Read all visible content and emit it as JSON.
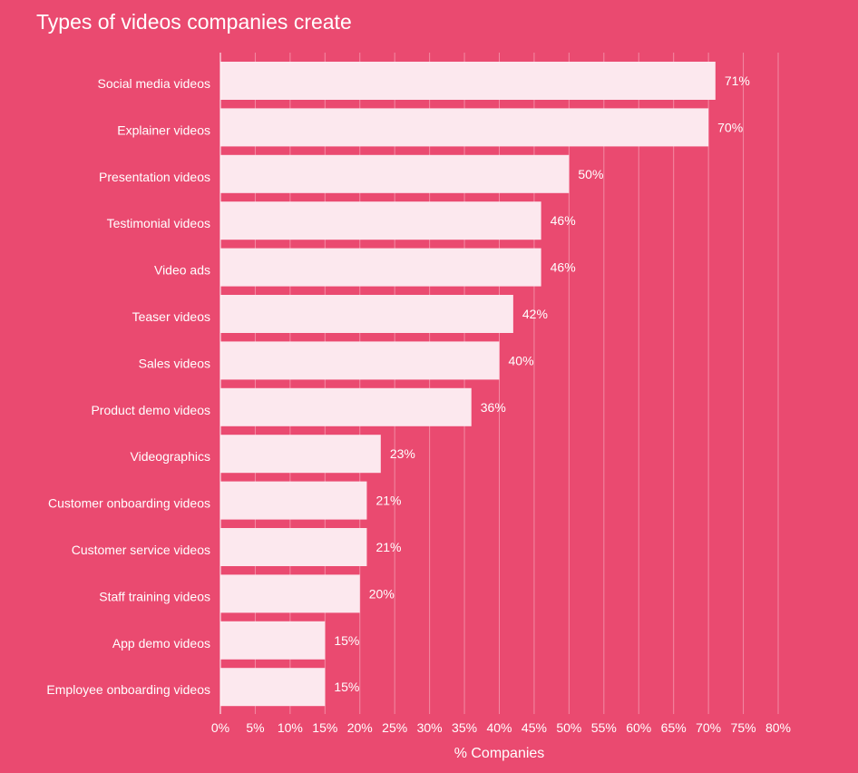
{
  "chart_data": {
    "type": "bar",
    "orientation": "horizontal",
    "title": "Types of videos companies create",
    "xlabel": "% Companies",
    "ylabel": "",
    "xlim": [
      0,
      80
    ],
    "x_tick_step": 5,
    "value_suffix": "%",
    "grid": true,
    "categories": [
      "Social media videos",
      "Explainer videos",
      "Presentation videos",
      "Testimonial videos",
      "Video ads",
      "Teaser videos",
      "Sales videos",
      "Product demo videos",
      "Videographics",
      "Customer onboarding videos",
      "Customer service videos",
      "Staff training videos",
      "App demo videos",
      "Employee onboarding videos"
    ],
    "values": [
      71,
      70,
      50,
      46,
      46,
      42,
      40,
      36,
      23,
      21,
      21,
      20,
      15,
      15
    ],
    "colors": {
      "background": "#ea4a70",
      "bar": "#fce8ee",
      "text": "#ffffff",
      "grid": "#f38aa3"
    }
  }
}
